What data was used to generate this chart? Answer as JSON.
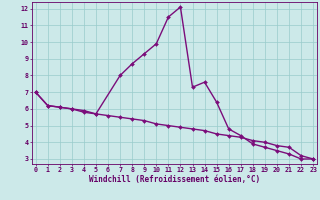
{
  "xlabel": "Windchill (Refroidissement éolien,°C)",
  "line1_x": [
    0,
    1,
    2,
    3,
    4,
    5,
    7,
    8,
    9,
    10,
    11,
    12,
    13,
    14,
    15,
    16,
    17,
    18,
    19,
    20,
    21,
    22,
    23
  ],
  "line1_y": [
    7.0,
    6.2,
    6.1,
    6.0,
    5.8,
    5.7,
    8.0,
    8.7,
    9.3,
    9.9,
    11.5,
    12.1,
    7.3,
    7.6,
    6.4,
    4.8,
    4.4,
    3.9,
    3.7,
    3.5,
    3.3,
    3.0,
    3.0
  ],
  "line2_x": [
    0,
    1,
    2,
    3,
    4,
    5,
    6,
    7,
    8,
    9,
    10,
    11,
    12,
    13,
    14,
    15,
    16,
    17,
    18,
    19,
    20,
    21,
    22,
    23
  ],
  "line2_y": [
    7.0,
    6.2,
    6.1,
    6.0,
    5.9,
    5.7,
    5.6,
    5.5,
    5.4,
    5.3,
    5.1,
    5.0,
    4.9,
    4.8,
    4.7,
    4.5,
    4.4,
    4.3,
    4.1,
    4.0,
    3.8,
    3.7,
    3.2,
    3.0
  ],
  "line_color": "#7B0D7B",
  "marker": "D",
  "marker_size": 2.0,
  "bg_color": "#cce9e9",
  "grid_color": "#99cccc",
  "xlim": [
    -0.3,
    23.3
  ],
  "ylim": [
    2.7,
    12.4
  ],
  "xticks": [
    0,
    1,
    2,
    3,
    4,
    5,
    6,
    7,
    8,
    9,
    10,
    11,
    12,
    13,
    14,
    15,
    16,
    17,
    18,
    19,
    20,
    21,
    22,
    23
  ],
  "yticks": [
    3,
    4,
    5,
    6,
    7,
    8,
    9,
    10,
    11,
    12
  ],
  "tick_fontsize": 4.8,
  "label_fontsize": 5.5,
  "line_width": 1.0
}
